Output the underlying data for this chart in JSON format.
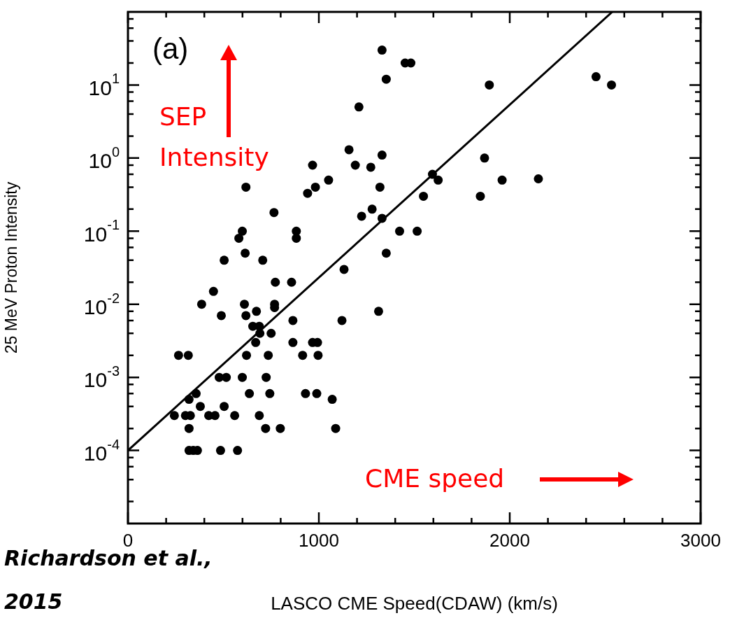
{
  "chart_data": {
    "type": "scatter",
    "xlabel": "LASCO CME Speed(CDAW) (km/s)",
    "ylabel": "25 MeV Proton Intensity",
    "annotations": [
      "(a)",
      "SEP Intensity",
      "CME speed",
      "Richardson et al., 2015"
    ],
    "log": "y",
    "grid": false,
    "marker": "circle",
    "xlim": [
      0,
      3000
    ],
    "xticks": [
      0,
      {
        "value": 200,
        "label": null
      },
      {
        "value": 400,
        "label": null
      },
      {
        "value": 600,
        "label": null
      },
      {
        "value": 800,
        "label": null
      },
      1000,
      {
        "value": 1200,
        "label": null
      },
      {
        "value": 1400,
        "label": null
      },
      {
        "value": 1600,
        "label": null
      },
      {
        "value": 1800,
        "label": null
      },
      2000,
      {
        "value": 2200,
        "label": null
      },
      {
        "value": 2400,
        "label": null
      },
      {
        "value": 2600,
        "label": null
      },
      {
        "value": 2800,
        "label": null
      },
      3000
    ],
    "ylim": [
      1e-05,
      100
    ],
    "yticks": [
      {
        "value": 2e-05,
        "label": null
      },
      {
        "value": 4e-05,
        "label": null
      },
      {
        "value": 6e-05,
        "label": null
      },
      {
        "value": 8e-05,
        "label": null
      },
      {
        "value": 0.0001,
        "label": "10$^{-4}$"
      },
      {
        "value": 0.0002,
        "label": null
      },
      {
        "value": 0.0004,
        "label": null
      },
      {
        "value": 0.0006,
        "label": null
      },
      {
        "value": 0.0008,
        "label": null
      },
      {
        "value": 0.001,
        "label": "10$^{-3}$"
      },
      {
        "value": 0.002,
        "label": null
      },
      {
        "value": 0.004,
        "label": null
      },
      {
        "value": 0.006,
        "label": null
      },
      {
        "value": 0.008,
        "label": null
      },
      {
        "value": 0.01,
        "label": "10$^{-2}$"
      },
      {
        "value": 0.02,
        "label": null
      },
      {
        "value": 0.04,
        "label": null
      },
      {
        "value": 0.06,
        "label": null
      },
      {
        "value": 0.08,
        "label": null
      },
      {
        "value": 0.1,
        "label": "10$^{-1}$"
      },
      {
        "value": 0.2,
        "label": null
      },
      {
        "value": 0.4,
        "label": null
      },
      {
        "value": 0.6,
        "label": null
      },
      {
        "value": 0.8,
        "label": null
      },
      {
        "value": 1,
        "label": "10$^{0}$"
      },
      {
        "value": 2,
        "label": null
      },
      {
        "value": 4,
        "label": null
      },
      {
        "value": 6,
        "label": null
      },
      {
        "value": 8,
        "label": null
      },
      {
        "value": 10,
        "label": "10$^{1}$"
      },
      {
        "value": 20,
        "label": null
      },
      {
        "value": 40,
        "label": null
      },
      {
        "value": 60,
        "label": null
      },
      {
        "value": 80,
        "label": null
      }
    ],
    "series": [
      {
        "color": "#000000",
        "x": [
          1331,
          1452,
          1482,
          1353,
          1210,
          1158,
          967,
          1191,
          1272,
          1331,
          618,
          941,
          982,
          1051,
          1320,
          765,
          1279,
          1224,
          1331,
          1548,
          599,
          581,
          882,
          882,
          1423,
          1515,
          614,
          1353,
          504,
          706,
          1893,
          2452,
          2533,
          1868,
          1595,
          1625,
          1960,
          2150,
          1846,
          1132,
          772,
          857,
          448,
          386,
          610,
          768,
          768,
          489,
          618,
          673,
          864,
          1121,
          1313,
          654,
          688,
          691,
          750,
          669,
          864,
          967,
          993,
          265,
          316,
          621,
          735,
          915,
          996,
          478,
          515,
          599,
          724,
          357,
          320,
          636,
          743,
          930,
          989,
          1070,
          379,
          504,
          243,
          301,
          327,
          423,
          456,
          559,
          688,
          320,
          721,
          798,
          1088,
          320,
          342,
          364,
          485,
          574
        ],
        "values": [
          30,
          20,
          20,
          12,
          5,
          1.3,
          0.8,
          0.8,
          0.75,
          1.1,
          0.4,
          0.33,
          0.4,
          0.5,
          0.4,
          0.18,
          0.2,
          0.16,
          0.15,
          0.3,
          0.1,
          0.08,
          0.1,
          0.08,
          0.1,
          0.1,
          0.05,
          0.05,
          0.04,
          0.04,
          10,
          13,
          10,
          1,
          0.6,
          0.5,
          0.5,
          0.52,
          0.3,
          0.03,
          0.02,
          0.02,
          0.015,
          0.01,
          0.01,
          0.01,
          0.009,
          0.007,
          0.007,
          0.008,
          0.006,
          0.006,
          0.008,
          0.005,
          0.005,
          0.004,
          0.004,
          0.003,
          0.003,
          0.003,
          0.003,
          0.002,
          0.002,
          0.002,
          0.002,
          0.002,
          0.002,
          0.001,
          0.001,
          0.001,
          0.001,
          0.0006,
          0.0005,
          0.0006,
          0.0006,
          0.0006,
          0.0006,
          0.0005,
          0.0004,
          0.0004,
          0.0003,
          0.0003,
          0.0003,
          0.0003,
          0.0003,
          0.0003,
          0.0003,
          0.0002,
          0.0002,
          0.0002,
          0.0002,
          0.0001,
          0.0001,
          0.0001,
          0.0001,
          0.0001
        ]
      },
      {
        "type": "line",
        "marker": "none",
        "color": "#000000",
        "x": [
          0,
          2537
        ],
        "values": [
          0.0001,
          100
        ]
      }
    ]
  }
}
